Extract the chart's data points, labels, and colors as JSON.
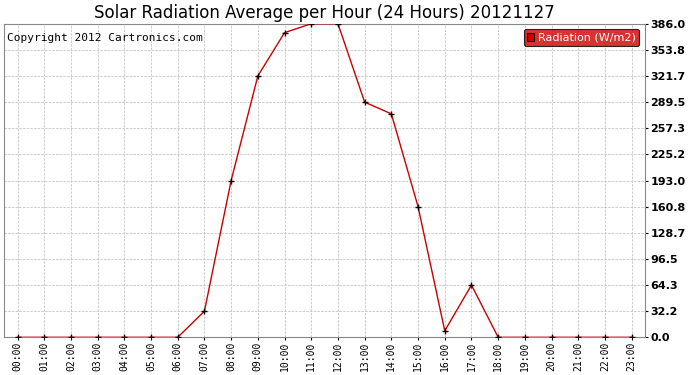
{
  "title": "Solar Radiation Average per Hour (24 Hours) 20121127",
  "copyright_text": "Copyright 2012 Cartronics.com",
  "legend_label": "Radiation (W/m2)",
  "hours": [
    0,
    1,
    2,
    3,
    4,
    5,
    6,
    7,
    8,
    9,
    10,
    11,
    12,
    13,
    14,
    15,
    16,
    17,
    18,
    19,
    20,
    21,
    22,
    23
  ],
  "hour_labels": [
    "00:00",
    "01:00",
    "02:00",
    "03:00",
    "04:00",
    "05:00",
    "06:00",
    "07:00",
    "08:00",
    "09:00",
    "10:00",
    "11:00",
    "12:00",
    "13:00",
    "14:00",
    "15:00",
    "16:00",
    "17:00",
    "18:00",
    "19:00",
    "20:00",
    "21:00",
    "22:00",
    "23:00"
  ],
  "values": [
    0.0,
    0.0,
    0.0,
    0.0,
    0.0,
    0.0,
    0.0,
    32.2,
    193.0,
    321.7,
    375.0,
    386.0,
    386.0,
    289.5,
    275.0,
    160.8,
    8.0,
    64.3,
    0.0,
    0.0,
    0.0,
    0.0,
    0.0,
    0.0
  ],
  "yticks": [
    0.0,
    32.2,
    64.3,
    96.5,
    128.7,
    160.8,
    193.0,
    225.2,
    257.3,
    289.5,
    321.7,
    353.8,
    386.0
  ],
  "ylim": [
    0.0,
    386.0
  ],
  "line_color": "#cc0000",
  "marker_color": "#000000",
  "grid_color": "#bbbbbb",
  "background_color": "#ffffff",
  "title_fontsize": 12,
  "copyright_fontsize": 8,
  "legend_bg": "#cc0000",
  "legend_text_color": "#ffffff",
  "fig_width": 6.9,
  "fig_height": 3.75,
  "dpi": 100
}
